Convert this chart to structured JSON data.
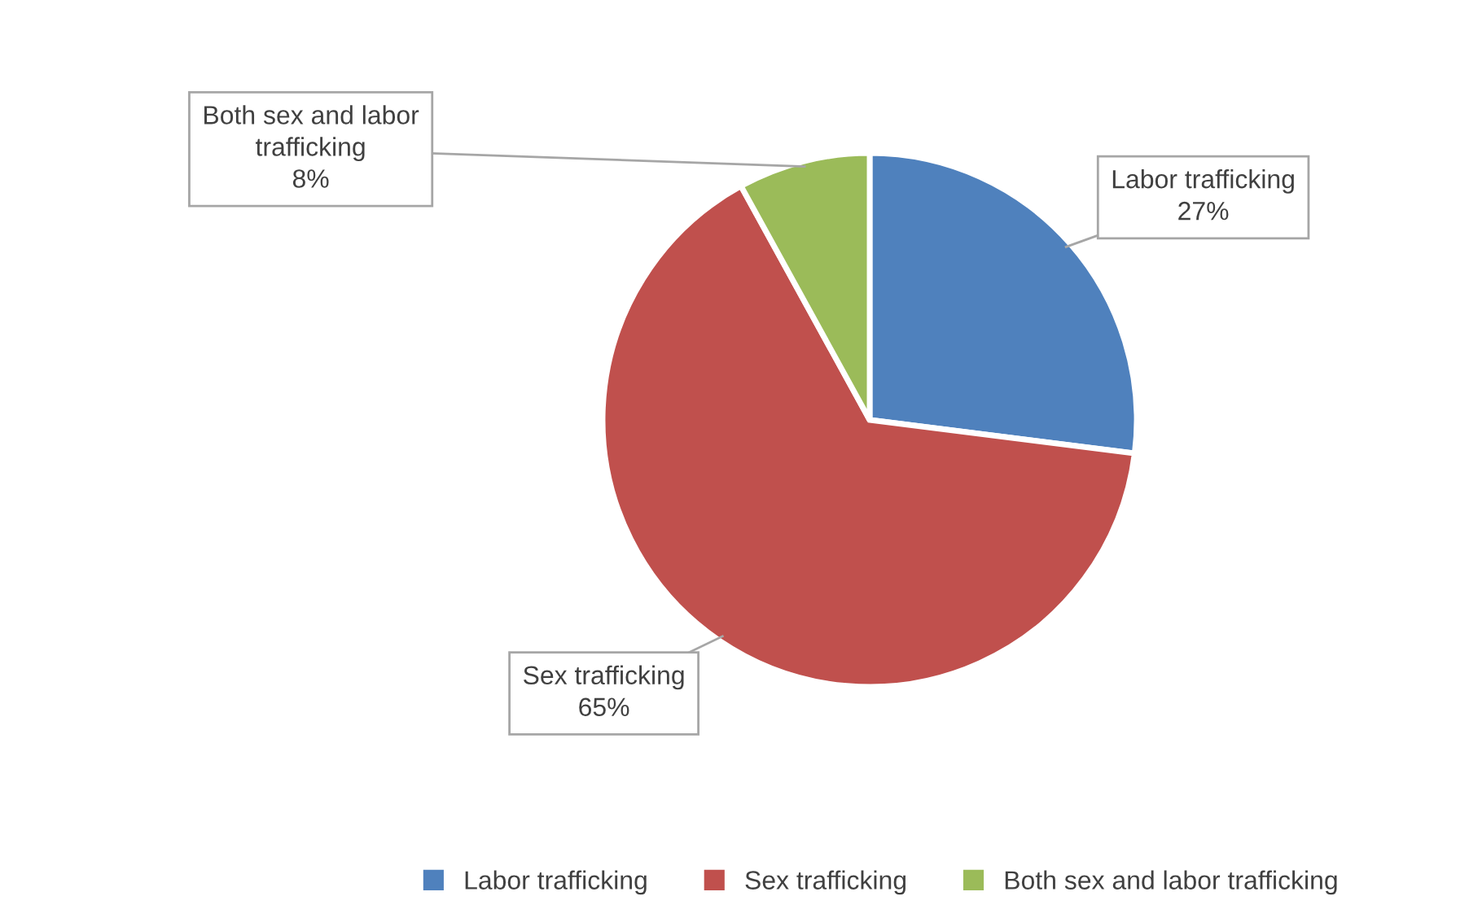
{
  "chart_data": {
    "type": "pie",
    "categories": [
      "Labor trafficking",
      "Sex trafficking",
      "Both sex and labor trafficking"
    ],
    "values": [
      27,
      65,
      8
    ],
    "colors": [
      "#4f81bd",
      "#c0504d",
      "#9bbb59"
    ],
    "value_labels": [
      "27%",
      "65%",
      "8%"
    ],
    "legend": "bottom"
  }
}
